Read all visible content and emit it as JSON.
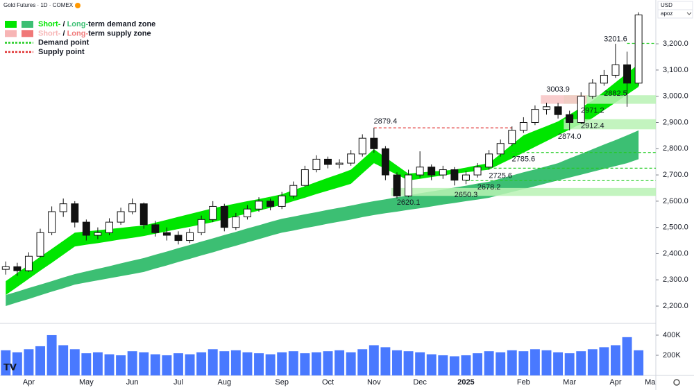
{
  "header": {
    "title": "Gold Futures · 1D · COMEX",
    "currency": "USD",
    "scale_mode": "apoz"
  },
  "legend": [
    {
      "parts": [
        "Short-",
        " / ",
        "Long-",
        "term demand zone"
      ],
      "colors": [
        "#00e600",
        "#3cbf73"
      ]
    },
    {
      "parts": [
        "Short-",
        " / ",
        "Long-",
        "term supply zone"
      ],
      "colors": [
        "#f7b5b5",
        "#f07878"
      ]
    },
    {
      "parts": [
        "Demand point"
      ],
      "colors": [
        "#22cc22"
      ]
    },
    {
      "parts": [
        "Supply point"
      ],
      "colors": [
        "#e03030"
      ]
    }
  ],
  "chart_data": {
    "type": "candlestick",
    "categories": [
      null,
      null,
      "Apr",
      null,
      null,
      null,
      null,
      "May",
      null,
      null,
      null,
      "Jun",
      null,
      null,
      null,
      "Jul",
      null,
      null,
      null,
      "Aug",
      null,
      null,
      null,
      null,
      "Sep",
      null,
      null,
      null,
      "Oct",
      null,
      null,
      null,
      "Nov",
      null,
      null,
      null,
      "Dec",
      null,
      null,
      null,
      "2025",
      null,
      null,
      null,
      null,
      "Feb",
      null,
      null,
      null,
      "Mar",
      null,
      null,
      null,
      "Apr",
      null,
      null,
      "Ma"
    ],
    "open": [
      2340,
      2350,
      2335,
      2390,
      2480,
      2560,
      2590,
      2520,
      2470,
      2480,
      2520,
      2560,
      2590,
      2510,
      2480,
      2470,
      2450,
      2480,
      2530,
      2580,
      2500,
      2540,
      2570,
      2600,
      2580,
      2620,
      2660,
      2720,
      2760,
      2740,
      2745,
      2780,
      2840,
      2800,
      2700,
      2620,
      2700,
      2730,
      2700,
      2720,
      2680,
      2700,
      2730,
      2780,
      2820,
      2870,
      2900,
      2950,
      2960,
      2930,
      2900,
      3000,
      3050,
      3080,
      3120,
      3050,
      null
    ],
    "high": [
      2370,
      2365,
      2405,
      2495,
      2580,
      2610,
      2600,
      2530,
      2500,
      2535,
      2575,
      2610,
      2595,
      2525,
      2500,
      2485,
      2495,
      2545,
      2600,
      2590,
      2555,
      2585,
      2615,
      2610,
      2635,
      2675,
      2735,
      2775,
      2770,
      2760,
      2795,
      2855,
      2880,
      2810,
      2710,
      2720,
      2790,
      2740,
      2735,
      2730,
      2715,
      2745,
      2795,
      2835,
      2885,
      2920,
      2965,
      2975,
      2975,
      2945,
      3015,
      3065,
      3100,
      3200,
      3170,
      3320,
      null
    ],
    "low": [
      2320,
      2315,
      2330,
      2385,
      2470,
      2540,
      2500,
      2450,
      2455,
      2470,
      2510,
      2550,
      2495,
      2465,
      2450,
      2435,
      2440,
      2470,
      2520,
      2485,
      2490,
      2530,
      2560,
      2565,
      2570,
      2610,
      2655,
      2710,
      2725,
      2725,
      2735,
      2770,
      2785,
      2680,
      2610,
      2615,
      2690,
      2680,
      2685,
      2660,
      2665,
      2690,
      2720,
      2770,
      2810,
      2860,
      2890,
      2930,
      2915,
      2870,
      2895,
      2990,
      3040,
      3070,
      2960,
      3040,
      null
    ],
    "close": [
      2350,
      2335,
      2390,
      2480,
      2560,
      2590,
      2520,
      2470,
      2480,
      2520,
      2560,
      2590,
      2510,
      2480,
      2470,
      2450,
      2480,
      2530,
      2580,
      2500,
      2540,
      2570,
      2600,
      2580,
      2620,
      2660,
      2720,
      2760,
      2740,
      2745,
      2780,
      2840,
      2800,
      2700,
      2620,
      2700,
      2730,
      2700,
      2720,
      2680,
      2700,
      2730,
      2780,
      2820,
      2870,
      2900,
      2950,
      2960,
      2930,
      2900,
      3000,
      3050,
      3080,
      3120,
      3050,
      3310,
      null
    ],
    "up_color": "#ffffff",
    "down_color": "#111111",
    "ylim": [
      2134,
      3367
    ],
    "yticks": [
      {
        "value": 2200,
        "label": "2,200.0"
      },
      {
        "value": 2300,
        "label": "2,300.0"
      },
      {
        "value": 2400,
        "label": "2,400.0"
      },
      {
        "value": 2500,
        "label": "2,500.0"
      },
      {
        "value": 2600,
        "label": "2,600.0"
      },
      {
        "value": 2700,
        "label": "2,700.0"
      },
      {
        "value": 2800,
        "label": "2,800.0"
      },
      {
        "value": 2900,
        "label": "2,900.0"
      },
      {
        "value": 3000,
        "label": "3,000.0"
      },
      {
        "value": 3100,
        "label": "3,100.0"
      },
      {
        "value": 3200,
        "label": "3,200.0"
      }
    ],
    "grid": false,
    "short_term_zone": {
      "color": "#00e600",
      "upper": [
        2295,
        2326,
        2357,
        2388,
        2418,
        2449,
        2480,
        2485,
        2489,
        2494,
        2498,
        2503,
        2507,
        2518,
        2529,
        2540,
        2551,
        2562,
        2573,
        2582,
        2591,
        2600,
        2608,
        2617,
        2626,
        2642,
        2657,
        2673,
        2689,
        2704,
        2720,
        2759,
        2798,
        2767,
        2736,
        2705,
        2709,
        2713,
        2716,
        2720,
        2728,
        2737,
        2745,
        2780,
        2816,
        2851,
        2869,
        2886,
        2904,
        2930,
        2957,
        2983,
        3018,
        3053,
        3088,
        3123,
        null
      ],
      "lower": [
        2242,
        2273,
        2304,
        2335,
        2365,
        2396,
        2427,
        2434,
        2440,
        2447,
        2454,
        2460,
        2467,
        2476,
        2485,
        2494,
        2502,
        2511,
        2520,
        2531,
        2542,
        2553,
        2564,
        2575,
        2586,
        2600,
        2613,
        2627,
        2640,
        2653,
        2666,
        2706,
        2745,
        2723,
        2701,
        2679,
        2685,
        2692,
        2698,
        2705,
        2710,
        2715,
        2720,
        2742,
        2763,
        2785,
        2807,
        2829,
        2851,
        2873,
        2895,
        2917,
        2947,
        2976,
        3006,
        3036,
        null
      ]
    },
    "long_term_zone": {
      "color": "#3cbf73",
      "upper": [
        2242,
        2255,
        2269,
        2282,
        2295,
        2309,
        2322,
        2332,
        2342,
        2352,
        2363,
        2373,
        2383,
        2396,
        2408,
        2421,
        2433,
        2446,
        2458,
        2471,
        2483,
        2496,
        2508,
        2521,
        2533,
        2541,
        2550,
        2558,
        2567,
        2575,
        2583,
        2592,
        2600,
        2607,
        2615,
        2622,
        2630,
        2637,
        2644,
        2652,
        2659,
        2667,
        2674,
        2686,
        2698,
        2710,
        2721,
        2733,
        2745,
        2763,
        2780,
        2798,
        2816,
        2833,
        2851,
        2870,
        null
      ],
      "lower": [
        2200,
        2214,
        2227,
        2241,
        2255,
        2268,
        2282,
        2290,
        2298,
        2306,
        2314,
        2322,
        2330,
        2343,
        2355,
        2368,
        2380,
        2393,
        2405,
        2418,
        2430,
        2443,
        2455,
        2468,
        2480,
        2488,
        2497,
        2505,
        2514,
        2522,
        2530,
        2539,
        2547,
        2554,
        2560,
        2567,
        2573,
        2580,
        2587,
        2593,
        2600,
        2606,
        2613,
        2624,
        2635,
        2646,
        2657,
        2668,
        2679,
        2690,
        2701,
        2712,
        2723,
        2734,
        2745,
        2760,
        null
      ]
    },
    "levels": [
      2879.4,
      3201.6,
      3003.9,
      2882.5,
      2971.2,
      2912.4,
      {
        "value": 2874,
        "label": "2874.0"
      },
      2785.6,
      2725.6,
      2678.2,
      2650.3,
      2620.1
    ],
    "demand_point_color": "#22cc22",
    "supply_point_color": "#e03030",
    "demand_zone_color": "#b9f2b4",
    "supply_zone_color": "#f8c4c4",
    "volume": {
      "color": "#2962ff",
      "values": [
        250000,
        230000,
        260000,
        290000,
        400000,
        300000,
        260000,
        220000,
        230000,
        210000,
        200000,
        240000,
        230000,
        210000,
        200000,
        220000,
        210000,
        230000,
        260000,
        240000,
        250000,
        230000,
        220000,
        210000,
        230000,
        240000,
        220000,
        230000,
        240000,
        250000,
        230000,
        260000,
        300000,
        280000,
        250000,
        240000,
        230000,
        210000,
        200000,
        190000,
        200000,
        220000,
        240000,
        230000,
        250000,
        240000,
        260000,
        250000,
        230000,
        220000,
        240000,
        260000,
        280000,
        300000,
        380000,
        250000,
        null
      ],
      "ylim": [
        0,
        503000
      ],
      "yticks": [
        {
          "value": 200000,
          "label": "200K"
        },
        {
          "value": 400000,
          "label": "400K"
        }
      ]
    }
  }
}
